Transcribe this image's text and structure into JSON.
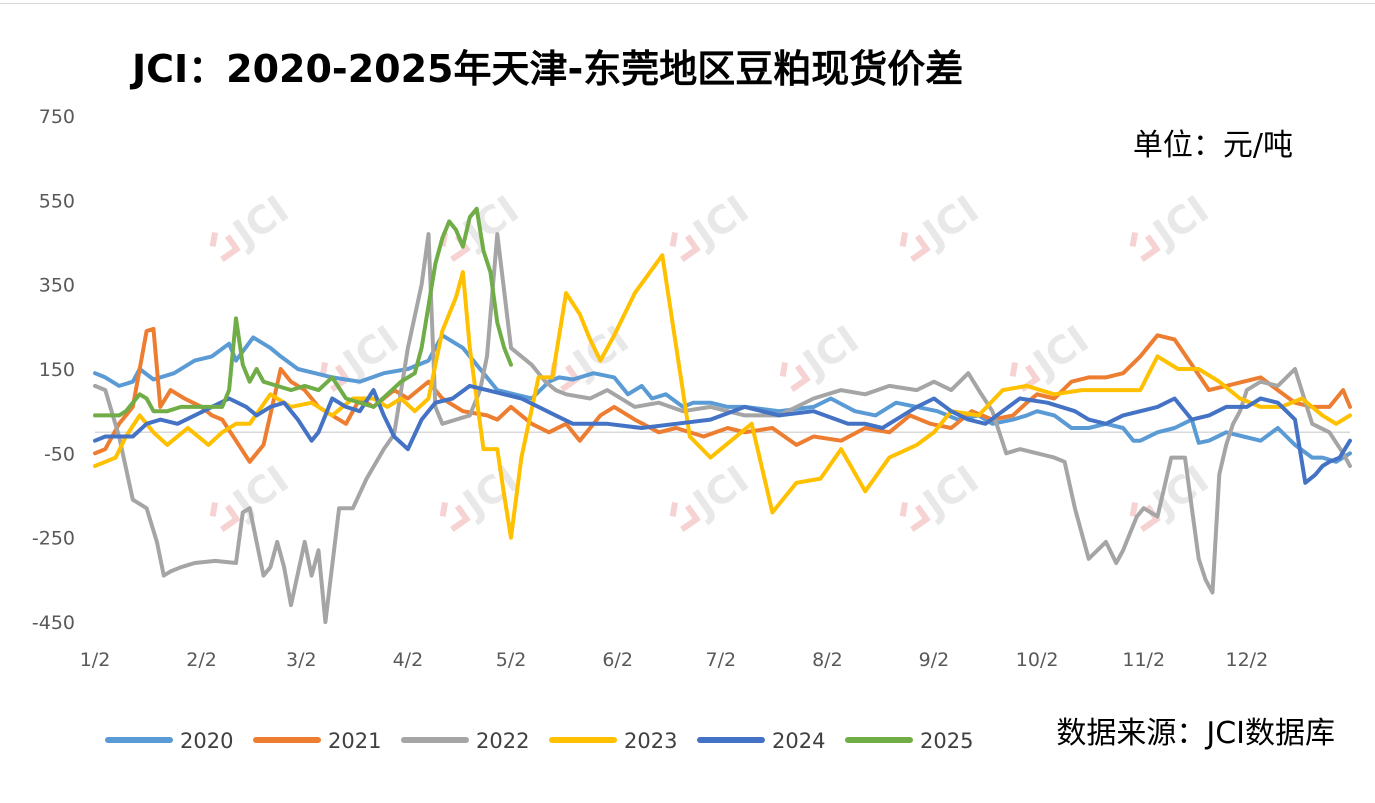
{
  "title": "JCI：2020-2025年天津-东莞地区豆粕现货价差",
  "unit": "单位：元/吨",
  "source": "数据来源：JCI数据库",
  "watermark": "JCI",
  "chart_data": {
    "type": "line",
    "ylim": [
      -450,
      750
    ],
    "yticks": [
      750,
      550,
      350,
      150,
      -50,
      -250,
      -450
    ],
    "ytick_labels": [
      "750",
      "550",
      "350",
      "150",
      "-50",
      "-250",
      "-450"
    ],
    "xlim": [
      1,
      366
    ],
    "xticks": [
      1,
      32,
      61,
      92,
      122,
      153,
      183,
      214,
      245,
      275,
      306,
      336
    ],
    "xtick_labels": [
      "1/2",
      "2/2",
      "3/2",
      "4/2",
      "5/2",
      "6/2",
      "7/2",
      "8/2",
      "9/2",
      "10/2",
      "11/2",
      "12/2"
    ],
    "legend_position": "bottom",
    "series": [
      {
        "name": "2020",
        "color": "#5B9BD5",
        "x": [
          1,
          4,
          8,
          12,
          14,
          18,
          24,
          30,
          35,
          40,
          42,
          47,
          52,
          55,
          60,
          65,
          70,
          78,
          85,
          92,
          98,
          102,
          108,
          112,
          118,
          123,
          128,
          133,
          136,
          140,
          146,
          152,
          156,
          160,
          163,
          167,
          172,
          175,
          180,
          185,
          190,
          200,
          210,
          215,
          222,
          228,
          234,
          240,
          246,
          252,
          258,
          262,
          268,
          272,
          275,
          280,
          285,
          290,
          295,
          300,
          303,
          305,
          310,
          315,
          320,
          322,
          325,
          330,
          335,
          340,
          345,
          350,
          355,
          358,
          362,
          366
        ],
        "y": [
          140,
          130,
          110,
          120,
          150,
          125,
          140,
          170,
          180,
          210,
          170,
          225,
          200,
          180,
          150,
          140,
          130,
          120,
          140,
          150,
          170,
          230,
          200,
          160,
          100,
          90,
          80,
          120,
          130,
          125,
          140,
          130,
          90,
          110,
          80,
          90,
          60,
          70,
          70,
          60,
          60,
          50,
          60,
          80,
          50,
          40,
          70,
          60,
          50,
          30,
          40,
          20,
          30,
          40,
          50,
          40,
          10,
          10,
          20,
          10,
          -20,
          -20,
          0,
          10,
          30,
          -25,
          -20,
          0,
          -10,
          -20,
          10,
          -30,
          -60,
          -60,
          -70,
          -50
        ]
      },
      {
        "name": "2021",
        "color": "#ED7D31",
        "x": [
          1,
          4,
          8,
          12,
          16,
          18,
          20,
          23,
          27,
          32,
          35,
          38,
          42,
          46,
          50,
          55,
          58,
          62,
          66,
          70,
          74,
          78,
          82,
          88,
          92,
          98,
          102,
          108,
          115,
          118,
          122,
          128,
          133,
          138,
          142,
          148,
          152,
          158,
          165,
          170,
          178,
          185,
          190,
          198,
          205,
          210,
          218,
          225,
          232,
          238,
          244,
          250,
          256,
          262,
          268,
          272,
          275,
          280,
          285,
          290,
          295,
          300,
          305,
          310,
          315,
          320,
          325,
          330,
          335,
          340,
          345,
          350,
          355,
          360,
          364,
          366
        ],
        "y": [
          -50,
          -40,
          20,
          60,
          240,
          245,
          60,
          100,
          80,
          60,
          40,
          30,
          -20,
          -70,
          -30,
          150,
          120,
          100,
          60,
          40,
          20,
          80,
          60,
          100,
          80,
          120,
          80,
          50,
          40,
          30,
          60,
          20,
          0,
          20,
          -20,
          40,
          60,
          30,
          0,
          10,
          -10,
          10,
          0,
          10,
          -30,
          -10,
          -20,
          10,
          0,
          40,
          20,
          10,
          50,
          30,
          40,
          70,
          90,
          80,
          120,
          130,
          130,
          140,
          180,
          230,
          220,
          160,
          100,
          110,
          120,
          130,
          100,
          70,
          60,
          60,
          100,
          60
        ]
      },
      {
        "name": "2022",
        "color": "#A5A5A5",
        "x": [
          1,
          4,
          8,
          12,
          16,
          19,
          21,
          23,
          26,
          30,
          36,
          42,
          44,
          46,
          50,
          52,
          54,
          56,
          58,
          62,
          64,
          66,
          68,
          72,
          76,
          80,
          85,
          88,
          92,
          96,
          98,
          100,
          102,
          106,
          110,
          113,
          115,
          118,
          122,
          128,
          132,
          135,
          138,
          145,
          150,
          158,
          165,
          172,
          180,
          190,
          200,
          210,
          218,
          225,
          232,
          240,
          245,
          250,
          255,
          258,
          262,
          266,
          270,
          275,
          280,
          283,
          286,
          290,
          295,
          298,
          300,
          302,
          304,
          306,
          310,
          314,
          318,
          322,
          324,
          326,
          328,
          330,
          332,
          334,
          336,
          340,
          345,
          350,
          355,
          360,
          364,
          366
        ],
        "y": [
          110,
          100,
          -10,
          -160,
          -180,
          -260,
          -340,
          -330,
          -320,
          -310,
          -305,
          -310,
          -190,
          -180,
          -340,
          -320,
          -260,
          -320,
          -410,
          -260,
          -340,
          -280,
          -450,
          -180,
          -180,
          -110,
          -40,
          -5,
          200,
          350,
          470,
          60,
          20,
          30,
          40,
          100,
          180,
          470,
          200,
          160,
          120,
          100,
          90,
          80,
          100,
          60,
          70,
          50,
          60,
          40,
          40,
          80,
          100,
          90,
          110,
          100,
          120,
          100,
          140,
          100,
          50,
          -50,
          -40,
          -50,
          -60,
          -70,
          -180,
          -300,
          -260,
          -310,
          -280,
          -240,
          -200,
          -180,
          -200,
          -60,
          -60,
          -300,
          -350,
          -380,
          -100,
          -30,
          20,
          50,
          100,
          120,
          110,
          150,
          20,
          0,
          -50,
          -80
        ]
      },
      {
        "name": "2023",
        "color": "#FFC000",
        "x": [
          1,
          4,
          7,
          10,
          14,
          18,
          22,
          28,
          34,
          38,
          42,
          46,
          52,
          58,
          64,
          70,
          76,
          82,
          86,
          90,
          94,
          98,
          102,
          106,
          108,
          110,
          114,
          118,
          120,
          122,
          125,
          130,
          134,
          138,
          142,
          145,
          148,
          152,
          158,
          166,
          174,
          180,
          186,
          192,
          198,
          205,
          212,
          218,
          225,
          232,
          240,
          245,
          250,
          258,
          265,
          272,
          280,
          288,
          294,
          300,
          305,
          310,
          316,
          322,
          328,
          334,
          340,
          346,
          352,
          358,
          362,
          366
        ],
        "y": [
          -80,
          -70,
          -60,
          -10,
          40,
          0,
          -30,
          10,
          -30,
          0,
          20,
          20,
          90,
          60,
          70,
          40,
          80,
          80,
          60,
          80,
          50,
          80,
          240,
          320,
          380,
          200,
          -40,
          -40,
          -150,
          -250,
          -60,
          130,
          130,
          330,
          280,
          220,
          170,
          230,
          330,
          420,
          -10,
          -60,
          -20,
          20,
          -190,
          -120,
          -110,
          -40,
          -140,
          -60,
          -30,
          0,
          50,
          40,
          100,
          110,
          90,
          100,
          100,
          100,
          100,
          180,
          150,
          150,
          120,
          80,
          60,
          60,
          80,
          40,
          20,
          40
        ]
      },
      {
        "name": "2024",
        "color": "#4472C4",
        "x": [
          1,
          4,
          8,
          12,
          16,
          20,
          25,
          30,
          35,
          40,
          45,
          48,
          52,
          56,
          60,
          64,
          66,
          70,
          74,
          78,
          82,
          85,
          88,
          92,
          96,
          100,
          105,
          110,
          115,
          120,
          125,
          130,
          135,
          140,
          150,
          160,
          170,
          180,
          190,
          200,
          210,
          220,
          225,
          230,
          240,
          245,
          250,
          255,
          260,
          270,
          278,
          282,
          286,
          290,
          295,
          300,
          305,
          310,
          315,
          320,
          325,
          330,
          336,
          340,
          345,
          350,
          353,
          356,
          358,
          360,
          363,
          366
        ],
        "y": [
          -20,
          -10,
          -10,
          -10,
          20,
          30,
          20,
          40,
          60,
          80,
          60,
          40,
          60,
          70,
          30,
          -20,
          0,
          80,
          60,
          50,
          100,
          40,
          -10,
          -40,
          30,
          70,
          80,
          110,
          100,
          90,
          80,
          60,
          40,
          20,
          20,
          10,
          20,
          30,
          60,
          40,
          50,
          20,
          20,
          10,
          60,
          80,
          50,
          30,
          20,
          80,
          70,
          60,
          50,
          30,
          20,
          40,
          50,
          60,
          80,
          30,
          40,
          60,
          60,
          80,
          70,
          30,
          -120,
          -100,
          -80,
          -70,
          -60,
          -20
        ]
      },
      {
        "name": "2025",
        "color": "#70AD47",
        "x": [
          1,
          3,
          6,
          8,
          10,
          12,
          14,
          16,
          18,
          22,
          26,
          32,
          36,
          38,
          40,
          42,
          44,
          46,
          48,
          50,
          54,
          58,
          62,
          66,
          70,
          74,
          78,
          82,
          86,
          90,
          94,
          96,
          98,
          100,
          102,
          104,
          106,
          108,
          110,
          112,
          114,
          116,
          118,
          120,
          122
        ],
        "y": [
          40,
          40,
          40,
          40,
          50,
          70,
          90,
          80,
          50,
          50,
          60,
          60,
          60,
          60,
          100,
          270,
          160,
          120,
          150,
          120,
          110,
          100,
          110,
          100,
          130,
          80,
          70,
          60,
          90,
          120,
          140,
          200,
          300,
          400,
          460,
          500,
          480,
          440,
          510,
          530,
          430,
          380,
          260,
          200,
          160
        ]
      }
    ]
  }
}
